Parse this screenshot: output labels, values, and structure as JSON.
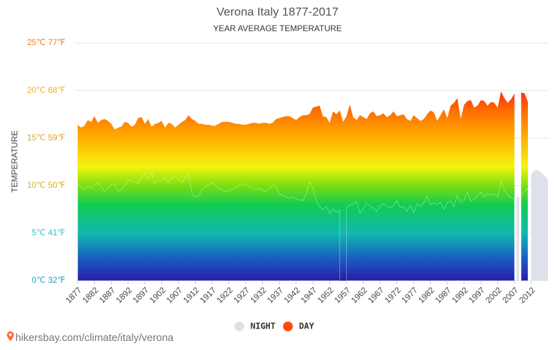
{
  "chart_data": {
    "type": "area",
    "title": "Verona Italy 1877-2017",
    "subtitle": "YEAR AVERAGE TEMPERATURE",
    "ylabel": "TEMPERATURE",
    "source": "hikersbay.com/climate/italy/verona",
    "xlim": [
      1877,
      2017
    ],
    "xticks": [
      1877,
      1882,
      1887,
      1892,
      1897,
      1902,
      1907,
      1912,
      1917,
      1922,
      1927,
      1932,
      1937,
      1942,
      1947,
      1952,
      1957,
      1962,
      1967,
      1972,
      1977,
      1982,
      1987,
      1992,
      1997,
      2002,
      2007,
      2012
    ],
    "ylim": [
      0,
      25
    ],
    "yticks": [
      {
        "value": 0,
        "label": "0℃ 32℉"
      },
      {
        "value": 5,
        "label": "5℃ 41℉"
      },
      {
        "value": 10,
        "label": "10℃ 50℉"
      },
      {
        "value": 15,
        "label": "15℃ 59℉"
      },
      {
        "value": 20,
        "label": "20℃ 68℉"
      },
      {
        "value": 25,
        "label": "25℃ 77℉"
      }
    ],
    "ytick_colors": [
      "#1a9fd0",
      "#22c4d0",
      "#d8b010",
      "#e8a020",
      "#f0b020",
      "#f07a18"
    ],
    "grid": true,
    "legend": "bottom",
    "x": [
      1877,
      1878,
      1879,
      1880,
      1881,
      1882,
      1883,
      1884,
      1885,
      1886,
      1887,
      1888,
      1889,
      1890,
      1891,
      1892,
      1893,
      1894,
      1895,
      1896,
      1897,
      1898,
      1899,
      1900,
      1901,
      1902,
      1903,
      1904,
      1905,
      1906,
      1907,
      1908,
      1909,
      1910,
      1911,
      1912,
      1913,
      1914,
      1915,
      1916,
      1917,
      1918,
      1919,
      1920,
      1921,
      1922,
      1923,
      1924,
      1925,
      1926,
      1927,
      1928,
      1929,
      1930,
      1931,
      1932,
      1933,
      1934,
      1935,
      1936,
      1937,
      1938,
      1939,
      1940,
      1941,
      1942,
      1943,
      1944,
      1945,
      1946,
      1947,
      1948,
      1949,
      1950,
      1951,
      1952,
      1953,
      1954,
      1955,
      1956,
      1957,
      1958,
      1959,
      1960,
      1961,
      1962,
      1963,
      1964,
      1965,
      1966,
      1967,
      1968,
      1969,
      1970,
      1971,
      1972,
      1973,
      1974,
      1975,
      1976,
      1977,
      1978,
      1979,
      1980,
      1981,
      1982,
      1983,
      1984,
      1985,
      1986,
      1987,
      1988,
      1989,
      1990,
      1991,
      1992,
      1993,
      1994,
      1995,
      1996,
      1997,
      1998,
      1999,
      2000,
      2001,
      2002,
      2003,
      2004,
      2005,
      2006,
      2007,
      2008,
      2009,
      2010,
      2011,
      2012,
      2013,
      2014,
      2015,
      2016,
      2017
    ],
    "series": [
      {
        "name": "NIGHT",
        "color": "#dde1ea",
        "values": [
          10.3,
          9.8,
          9.6,
          10.0,
          9.7,
          10.1,
          10.3,
          9.9,
          9.4,
          9.7,
          10.1,
          10.2,
          9.4,
          9.6,
          10.0,
          10.5,
          10.6,
          10.4,
          10.2,
          10.9,
          11.3,
          10.7,
          11.4,
          10.2,
          10.6,
          10.5,
          10.9,
          10.3,
          10.8,
          10.9,
          10.7,
          10.3,
          10.9,
          11.1,
          9.2,
          8.8,
          8.9,
          9.6,
          9.9,
          10.1,
          10.3,
          10.0,
          9.7,
          9.5,
          9.4,
          9.4,
          9.6,
          9.8,
          10.0,
          10.2,
          10.1,
          9.9,
          9.8,
          9.6,
          9.7,
          9.5,
          9.4,
          9.7,
          10.0,
          9.9,
          9.1,
          9.0,
          8.8,
          8.7,
          8.8,
          8.6,
          8.5,
          8.4,
          9.1,
          10.4,
          9.8,
          8.4,
          7.8,
          7.5,
          7.8,
          7.1,
          7.5,
          7.2,
          7.4,
          null,
          7.6,
          8.0,
          8.1,
          8.3,
          7.1,
          7.6,
          8.1,
          7.9,
          7.6,
          7.3,
          7.9,
          8.1,
          7.8,
          7.7,
          7.9,
          8.4,
          7.7,
          7.8,
          7.3,
          7.9,
          7.2,
          8.1,
          7.8,
          8.2,
          8.9,
          8.0,
          8.2,
          8.0,
          8.3,
          7.5,
          8.2,
          8.4,
          7.8,
          9.0,
          8.2,
          8.5,
          9.3,
          8.4,
          8.6,
          9.0,
          9.3,
          8.8,
          9.2,
          9.0,
          9.1,
          8.8,
          10.5,
          9.6,
          9.0,
          8.7,
          8.6,
          8.8,
          9.1,
          9.4,
          9.7,
          11.2,
          11.6,
          11.6,
          11.4,
          11.0,
          10.6
        ]
      },
      {
        "name": "DAY",
        "color": "#ff4a0a",
        "values": [
          16.4,
          16.1,
          16.3,
          16.9,
          16.7,
          17.3,
          16.6,
          16.9,
          17.0,
          16.8,
          16.5,
          15.9,
          16.1,
          16.2,
          16.7,
          16.6,
          16.2,
          16.4,
          17.1,
          17.2,
          16.5,
          17.0,
          16.2,
          16.5,
          16.6,
          16.8,
          16.1,
          16.6,
          16.5,
          16.1,
          16.4,
          16.7,
          16.9,
          17.4,
          17.0,
          16.8,
          16.5,
          16.5,
          16.4,
          16.4,
          16.3,
          16.3,
          16.5,
          16.7,
          16.7,
          16.7,
          16.6,
          16.5,
          16.5,
          16.4,
          16.4,
          16.5,
          16.6,
          16.6,
          16.5,
          16.6,
          16.6,
          16.5,
          16.6,
          17.0,
          17.1,
          17.2,
          17.3,
          17.3,
          17.1,
          16.9,
          17.2,
          17.4,
          17.4,
          17.5,
          18.2,
          18.3,
          18.4,
          17.3,
          17.2,
          16.6,
          17.8,
          17.5,
          17.9,
          16.7,
          17.3,
          18.5,
          17.2,
          16.9,
          17.4,
          17.2,
          17.0,
          17.6,
          17.8,
          17.3,
          17.4,
          17.6,
          17.2,
          17.4,
          17.8,
          17.3,
          17.4,
          17.5,
          17.0,
          16.8,
          17.4,
          17.1,
          16.8,
          17.0,
          17.5,
          17.9,
          17.7,
          16.8,
          17.4,
          18.0,
          17.1,
          18.4,
          18.7,
          19.2,
          17.0,
          18.5,
          18.9,
          19.0,
          18.2,
          18.4,
          19.0,
          18.9,
          18.4,
          18.8,
          18.7,
          18.2,
          19.9,
          19.2,
          18.7,
          19.1,
          19.7,
          null,
          19.8,
          19.7,
          18.8,
          null,
          null,
          null,
          null,
          null,
          null
        ]
      }
    ]
  }
}
